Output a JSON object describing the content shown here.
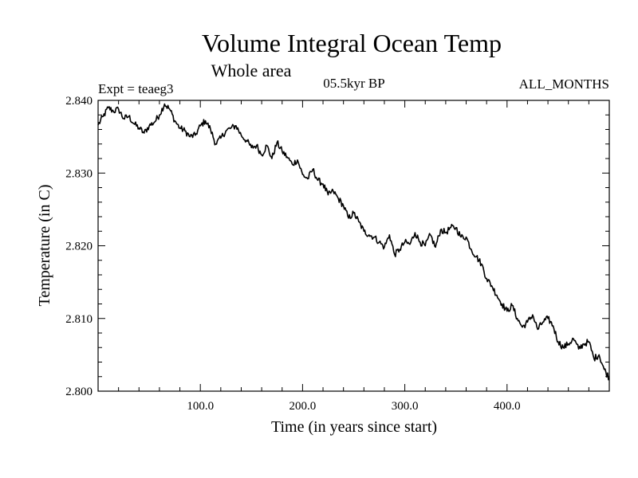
{
  "chart_data": {
    "type": "line",
    "title": "Volume Integral Ocean Temp",
    "subtitle": "Whole area",
    "annotations": {
      "left": "Expt = teaeg3",
      "center": "05.5kyr BP",
      "right": "ALL_MONTHS"
    },
    "xlabel": "Time (in years since start)",
    "ylabel": "Temperature (in C)",
    "xlim": [
      0,
      500
    ],
    "ylim": [
      2.8,
      2.84
    ],
    "xticks": [
      {
        "value": 100,
        "label": "100.0"
      },
      {
        "value": 200,
        "label": "200.0"
      },
      {
        "value": 300,
        "label": "300.0"
      },
      {
        "value": 400,
        "label": "400.0"
      }
    ],
    "yticks": [
      {
        "value": 2.8,
        "label": "2.800"
      },
      {
        "value": 2.81,
        "label": "2.810"
      },
      {
        "value": 2.82,
        "label": "2.820"
      },
      {
        "value": 2.83,
        "label": "2.830"
      },
      {
        "value": 2.84,
        "label": "2.840"
      }
    ],
    "series": [
      {
        "name": "Volume Integral Ocean Temp",
        "x": [
          0,
          5,
          10,
          15,
          20,
          25,
          30,
          35,
          40,
          45,
          50,
          55,
          60,
          65,
          70,
          75,
          80,
          85,
          90,
          95,
          100,
          105,
          110,
          115,
          120,
          125,
          130,
          135,
          140,
          145,
          150,
          155,
          160,
          165,
          170,
          175,
          180,
          185,
          190,
          195,
          200,
          205,
          210,
          215,
          220,
          225,
          230,
          235,
          240,
          245,
          250,
          255,
          260,
          265,
          270,
          275,
          280,
          285,
          290,
          295,
          300,
          305,
          310,
          315,
          320,
          325,
          330,
          335,
          340,
          345,
          350,
          355,
          360,
          365,
          370,
          375,
          380,
          385,
          390,
          395,
          400,
          405,
          410,
          415,
          420,
          425,
          430,
          435,
          440,
          445,
          450,
          455,
          460,
          465,
          470,
          475,
          480,
          485,
          490,
          495,
          500
        ],
        "values": [
          2.8366,
          2.8378,
          2.839,
          2.8385,
          2.8388,
          2.8375,
          2.8378,
          2.8368,
          2.8362,
          2.8355,
          2.8365,
          2.837,
          2.838,
          2.8395,
          2.8388,
          2.8372,
          2.8362,
          2.8358,
          2.835,
          2.8352,
          2.8365,
          2.8372,
          2.836,
          2.834,
          2.8348,
          2.8358,
          2.8362,
          2.8365,
          2.8352,
          2.8345,
          2.8335,
          2.8338,
          2.8325,
          2.8338,
          2.832,
          2.8342,
          2.833,
          2.8322,
          2.8312,
          2.8318,
          2.8298,
          2.8292,
          2.8305,
          2.829,
          2.8285,
          2.827,
          2.8275,
          2.8265,
          2.8255,
          2.8238,
          2.8245,
          2.8233,
          2.822,
          2.8215,
          2.8212,
          2.8205,
          2.8198,
          2.8215,
          2.8188,
          2.8195,
          2.8205,
          2.8202,
          2.8218,
          2.8205,
          2.82,
          2.8215,
          2.8198,
          2.8222,
          2.8218,
          2.8225,
          2.8225,
          2.8212,
          2.8212,
          2.8195,
          2.8185,
          2.8175,
          2.8155,
          2.8145,
          2.8132,
          2.812,
          2.811,
          2.8118,
          2.81,
          2.8088,
          2.8095,
          2.8105,
          2.8085,
          2.8095,
          2.81,
          2.809,
          2.8068,
          2.806,
          2.8065,
          2.8072,
          2.8058,
          2.8065,
          2.8068,
          2.8045,
          2.805,
          2.803,
          2.8018
        ]
      }
    ],
    "grid": false,
    "legend": "none"
  }
}
